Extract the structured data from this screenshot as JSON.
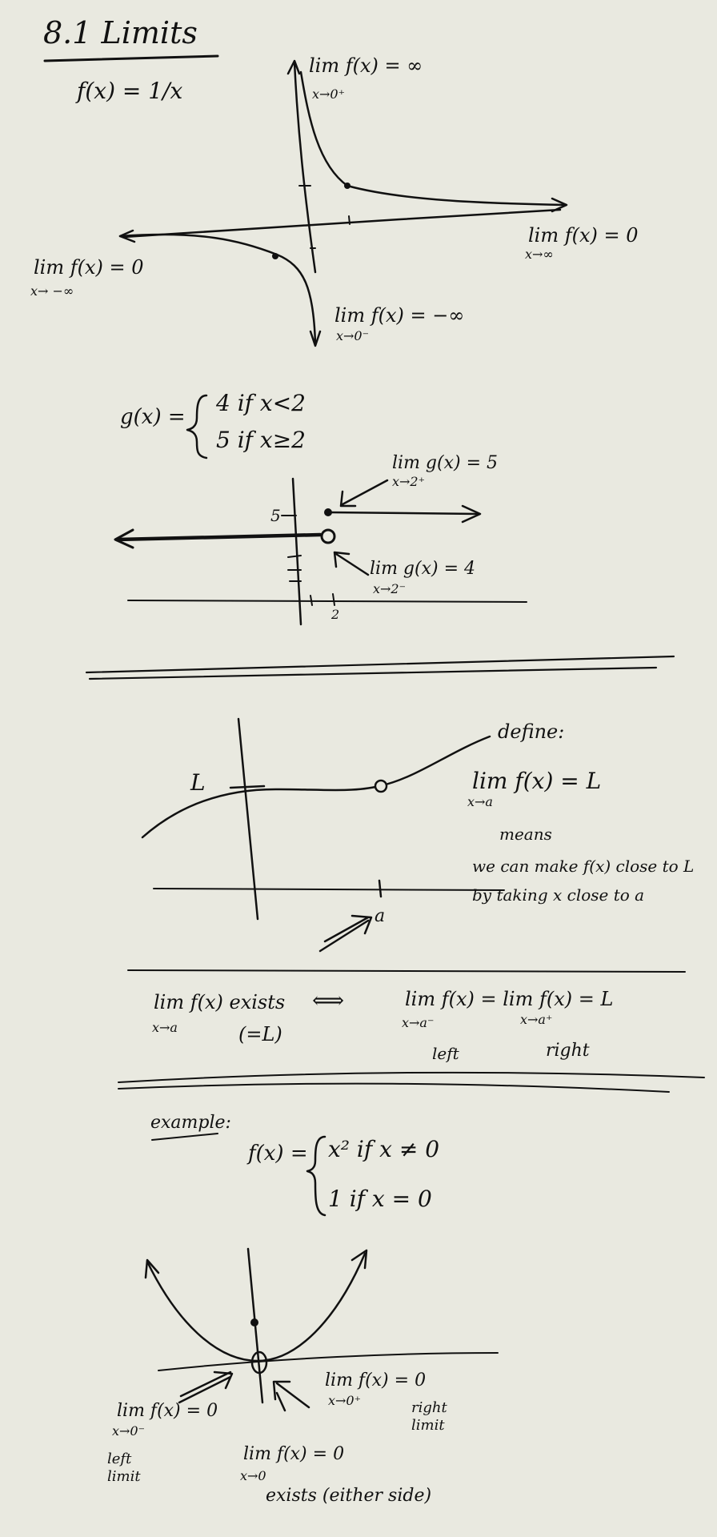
{
  "title": "8.1 Limits",
  "section1": {
    "function": "f(x) = 1/x",
    "lim_right_zero": "lim f(x) = ∞",
    "lim_right_zero_sub": "x→0⁺",
    "lim_inf": "lim f(x) = 0",
    "lim_inf_sub": "x→∞",
    "lim_neg_inf": "lim f(x) = 0",
    "lim_neg_inf_sub": "x→ −∞",
    "lim_left_zero": "lim f(x) = −∞",
    "lim_left_zero_sub": "x→0⁻"
  },
  "section2": {
    "g_def": "g(x) =",
    "case1": "4   if   x<2",
    "case2": "5   if   x≥2",
    "lim_right": "lim g(x) = 5",
    "lim_right_sub": "x→2⁺",
    "lim_left": "lim g(x) = 4",
    "lim_left_sub": "x→2⁻",
    "y_tick": "5",
    "x_tick": "2"
  },
  "section3": {
    "l_label": "L",
    "a_label": "a",
    "define": "define:",
    "lim": "lim f(x) = L",
    "lim_sub": "x→a",
    "means": "means",
    "explain1": "we can make f(x) close to L",
    "explain2": "by taking x close to a"
  },
  "section4": {
    "lim_exists": "lim f(x) exists",
    "lim_exists_sub": "x→a",
    "equals_l": "(=L)",
    "iff": "⟺",
    "one_sided": "lim f(x) = lim f(x) = L",
    "sub_left": "x→a⁻",
    "sub_right": "x→a⁺",
    "left": "left",
    "right": "right"
  },
  "section5": {
    "example": "example:",
    "f_def": "f(x) =",
    "case1": "x²   if   x ≠ 0",
    "case2": "1    if   x = 0",
    "lim_right": "lim f(x) = 0",
    "lim_right_sub": "x→0⁺",
    "right_limit": "right limit",
    "lim_left": "lim f(x) = 0",
    "lim_left_sub": "x→0⁻",
    "left_limit": "left limit",
    "lim_both": "lim f(x) = 0",
    "lim_both_sub": "x→0",
    "exists": "exists (either side)"
  }
}
